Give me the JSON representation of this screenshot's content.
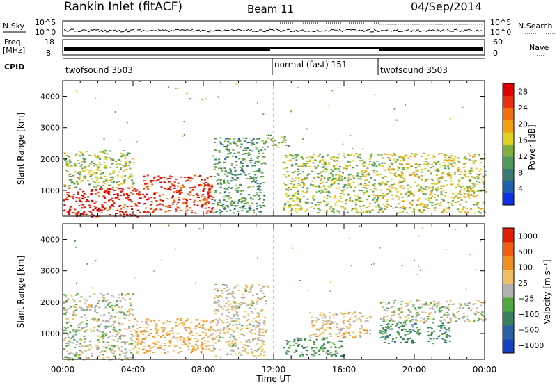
{
  "header": {
    "title": "Rankin Inlet (fitACF)",
    "beam": "Beam 11",
    "date": "04/Sep/2014"
  },
  "strips": {
    "nsky_label": "N.Sky",
    "nsky_top": "10^5",
    "nsky_bottom": "10^0",
    "nsearch_label": "N.Search",
    "nsearch_top": "10^5",
    "nsearch_bottom": "10^0",
    "freq_label": "Freq.",
    "freq_unit": "[MHz]",
    "freq_top": "18",
    "freq_bottom": "8",
    "nave_label": "Nave",
    "nave_top": "60",
    "nave_bottom": "0",
    "cpid_label": "CPID"
  },
  "cpid_segments": [
    {
      "label": "twofsound 3503",
      "start_hour": 0
    },
    {
      "label": "normal (fast) 151",
      "start_hour": 12
    },
    {
      "label": "twofsound 3503",
      "start_hour": 18
    }
  ],
  "chart_data": [
    {
      "type": "heatmap",
      "name": "power-panel",
      "ylabel": "Slant Range [km]",
      "xlim": [
        0,
        24
      ],
      "ylim": [
        180,
        4500
      ],
      "yticks": [
        1000,
        2000,
        3000,
        4000
      ],
      "xticks": [
        "00:00",
        "04:00",
        "08:00",
        "12:00",
        "16:00",
        "20:00",
        "00:00"
      ],
      "colorbar": {
        "label": "Power [dB]",
        "ticks": [
          4,
          8,
          12,
          16,
          20,
          24,
          28
        ],
        "range": [
          0,
          30
        ],
        "colors": [
          "#1030e0",
          "#2060b0",
          "#3a7a70",
          "#4e9a5a",
          "#80b040",
          "#e0d020",
          "#f0a010",
          "#f07010",
          "#e83010",
          "#e00000"
        ]
      },
      "regions": [
        {
          "x": [
            0,
            4.5
          ],
          "y": [
            180,
            1100
          ],
          "value": 28
        },
        {
          "x": [
            4.5,
            8.5
          ],
          "y": [
            300,
            1500
          ],
          "value": 26
        },
        {
          "x": [
            0,
            4
          ],
          "y": [
            1100,
            2300
          ],
          "value": 14
        },
        {
          "x": [
            8.5,
            11.5
          ],
          "y": [
            300,
            2700
          ],
          "value": 10
        },
        {
          "x": [
            11.5,
            12.8
          ],
          "y": [
            2400,
            2800
          ],
          "value": 12
        },
        {
          "x": [
            12.5,
            18
          ],
          "y": [
            300,
            2200
          ],
          "value": 14
        },
        {
          "x": [
            18,
            24
          ],
          "y": [
            300,
            2200
          ],
          "value": 16
        }
      ]
    },
    {
      "type": "heatmap",
      "name": "velocity-panel",
      "ylabel": "Slant Range [km]",
      "xlabel": "Time UT",
      "xlim": [
        0,
        24
      ],
      "ylim": [
        180,
        4500
      ],
      "yticks": [
        1000,
        2000,
        3000,
        4000
      ],
      "xticks": [
        "00:00",
        "04:00",
        "08:00",
        "12:00",
        "16:00",
        "20:00",
        "00:00"
      ],
      "colorbar": {
        "label": "Velocity [m s⁻¹]",
        "ticks": [
          "1000",
          "500",
          "100",
          "25",
          "−25",
          "−100",
          "−500",
          "−1000"
        ],
        "range": [
          -1000,
          1000
        ],
        "colors": [
          "#1840c0",
          "#2a60a8",
          "#3a8060",
          "#50a840",
          "#b0b0b0",
          "#f0c060",
          "#f09020",
          "#f06010",
          "#e02000"
        ]
      },
      "regions": [
        {
          "x": [
            0,
            4
          ],
          "y": [
            180,
            2300
          ],
          "value": 0
        },
        {
          "x": [
            4,
            8.5
          ],
          "y": [
            400,
            1500
          ],
          "value": 300
        },
        {
          "x": [
            8.5,
            11.5
          ],
          "y": [
            300,
            2600
          ],
          "value": 100
        },
        {
          "x": [
            12.5,
            16
          ],
          "y": [
            300,
            900
          ],
          "value": -300
        },
        {
          "x": [
            14,
            17.5
          ],
          "y": [
            900,
            1700
          ],
          "value": 200
        },
        {
          "x": [
            18,
            22
          ],
          "y": [
            700,
            1400
          ],
          "value": -400
        },
        {
          "x": [
            18,
            24
          ],
          "y": [
            1400,
            2100
          ],
          "value": 0
        }
      ]
    }
  ]
}
